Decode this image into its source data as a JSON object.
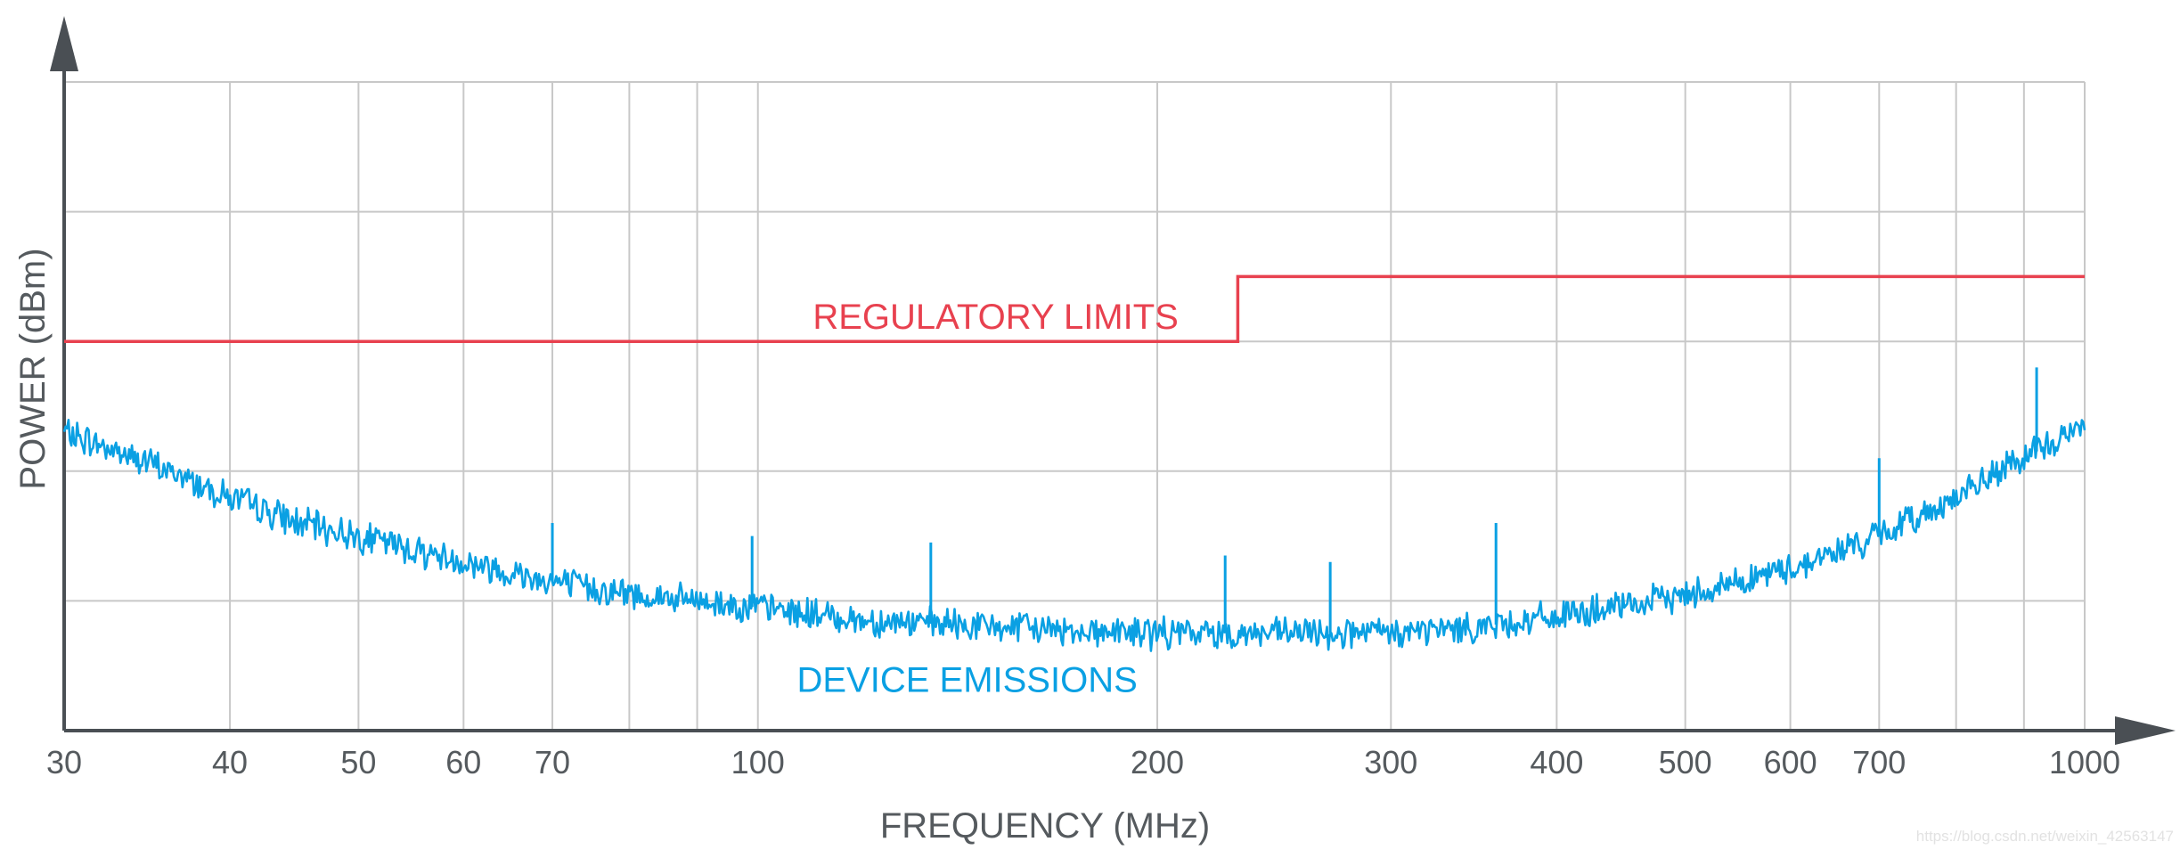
{
  "chart_data": {
    "type": "line",
    "title": "",
    "xlabel": "FREQUENCY (MHz)",
    "ylabel": "POWER (dBm)",
    "x_scale": "log",
    "xlim": [
      30,
      1000
    ],
    "x_ticks": [
      30,
      40,
      50,
      60,
      70,
      100,
      200,
      300,
      400,
      500,
      600,
      700,
      1000
    ],
    "x_tick_labels": [
      "30",
      "40",
      "50",
      "60",
      "70",
      "100",
      "200",
      "300",
      "400",
      "500",
      "600",
      "700",
      "1000"
    ],
    "ylim": [
      0,
      5
    ],
    "y_tick_labels_shown": false,
    "grid": true,
    "legend": "none",
    "series": [
      {
        "name": "REGULATORY LIMITS",
        "color": "#e8414f",
        "style": "step",
        "x": [
          30,
          230,
          230,
          1000
        ],
        "y": [
          3.0,
          3.0,
          3.5,
          3.5
        ]
      },
      {
        "name": "DEVICE EMISSIONS",
        "color": "#0aa0e3",
        "style": "noisy",
        "x": [
          30,
          35,
          40,
          45,
          50,
          60,
          70,
          80,
          100,
          120,
          150,
          200,
          250,
          300,
          350,
          400,
          450,
          500,
          600,
          700,
          800,
          900,
          1000
        ],
        "y": [
          2.3,
          2.05,
          1.8,
          1.6,
          1.5,
          1.3,
          1.15,
          1.05,
          0.95,
          0.85,
          0.8,
          0.75,
          0.75,
          0.75,
          0.8,
          0.88,
          0.95,
          1.05,
          1.25,
          1.5,
          1.8,
          2.1,
          2.35
        ],
        "spikes": [
          {
            "x": 70,
            "y": 1.6
          },
          {
            "x": 99,
            "y": 1.5
          },
          {
            "x": 135,
            "y": 1.45
          },
          {
            "x": 225,
            "y": 1.35
          },
          {
            "x": 270,
            "y": 1.3
          },
          {
            "x": 360,
            "y": 1.6
          },
          {
            "x": 700,
            "y": 2.1
          },
          {
            "x": 920,
            "y": 2.8
          }
        ]
      }
    ]
  },
  "watermark": "https://blog.csdn.net/weixin_42563147"
}
